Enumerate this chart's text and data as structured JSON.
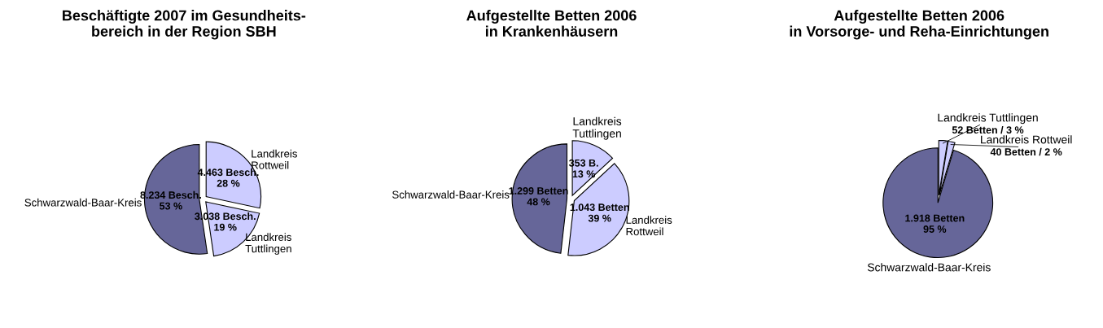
{
  "chart_data": [
    {
      "type": "pie",
      "title": "Beschäftigte 2007 im Gesundheits-\nbereich in der Region SBH",
      "categories": [
        "Schwarzwald-Baar-Kreis",
        "Landkreis\nTuttlingen",
        "Landkreis\nRottweil"
      ],
      "values": [
        8234,
        3038,
        4463
      ],
      "colors": [
        "#666699",
        "#ccccff",
        "#ccccff"
      ],
      "value_labels": [
        "8.234 Besch.\n53 %",
        "3.038 Besch.\n19 %",
        "4.463 Besch.\n28 %"
      ]
    },
    {
      "type": "pie",
      "title": "Aufgestellte Betten 2006\nin Krankenhäusern",
      "categories": [
        "Schwarzwald-Baar-Kreis",
        "Landkreis\nRottweil",
        "Landkreis\nTuttlingen"
      ],
      "values": [
        1299,
        1043,
        353
      ],
      "colors": [
        "#666699",
        "#ccccff",
        "#ccccff"
      ],
      "value_labels": [
        "1.299 Betten\n48 %",
        "1.043 Betten\n39 %",
        "353 B.\n13 %"
      ]
    },
    {
      "type": "pie",
      "title": "Aufgestellte Betten 2006\nin Vorsorge- und Reha-Einrichtungen",
      "categories": [
        "Schwarzwald-Baar-Kreis",
        "Landkreis Rottweil",
        "Landkreis Tuttlingen"
      ],
      "values": [
        1918,
        40,
        52
      ],
      "colors": [
        "#666699",
        "#ccccff",
        "#ccccff"
      ],
      "value_labels": [
        "1.918 Betten\n95 %",
        "40 Betten / 2 %",
        "52 Betten / 3 %"
      ]
    }
  ]
}
